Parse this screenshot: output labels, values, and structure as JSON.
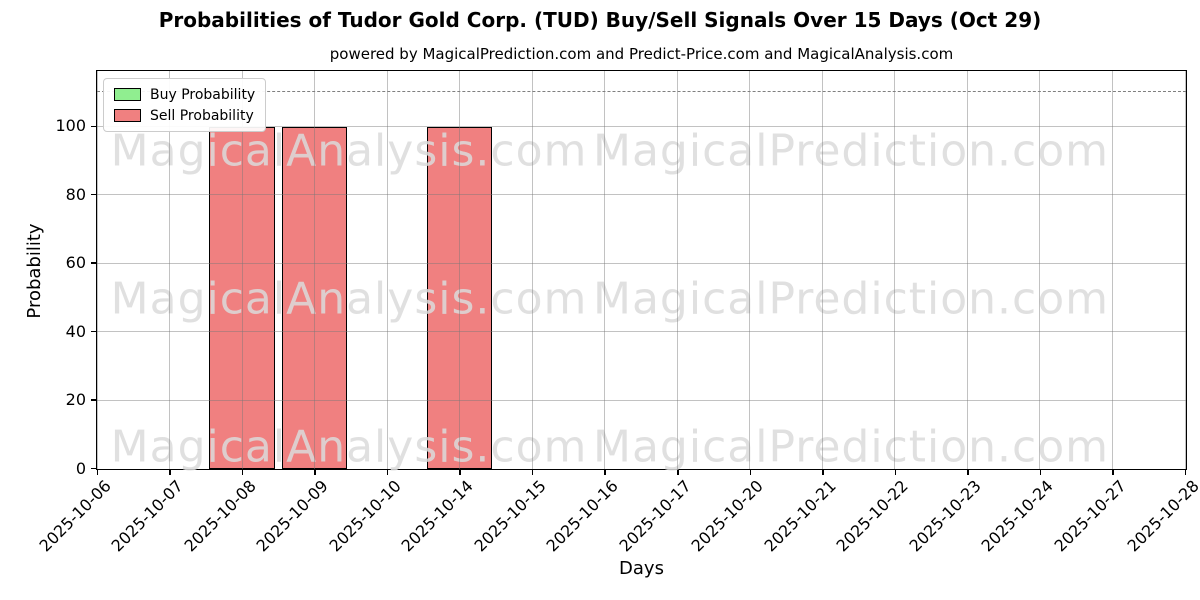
{
  "chart_data": {
    "type": "bar",
    "title": "Probabilities of Tudor Gold Corp. (TUD) Buy/Sell Signals Over 15 Days (Oct 29)",
    "subtitle": "powered by MagicalPrediction.com and Predict-Price.com and MagicalAnalysis.com",
    "xlabel": "Days",
    "ylabel": "Probability",
    "categories": [
      "2025-10-06",
      "2025-10-07",
      "2025-10-08",
      "2025-10-09",
      "2025-10-10",
      "2025-10-14",
      "2025-10-15",
      "2025-10-16",
      "2025-10-17",
      "2025-10-20",
      "2025-10-21",
      "2025-10-22",
      "2025-10-23",
      "2025-10-24",
      "2025-10-27",
      "2025-10-28"
    ],
    "series": [
      {
        "name": "Buy Probability",
        "color": "#90ee90",
        "values": [
          0,
          0,
          0,
          0,
          0,
          0,
          0,
          0,
          0,
          0,
          0,
          0,
          0,
          0,
          0,
          0
        ]
      },
      {
        "name": "Sell Probability",
        "color": "#f08080",
        "values": [
          0,
          0,
          100,
          100,
          0,
          100,
          0,
          0,
          0,
          0,
          0,
          0,
          0,
          0,
          0,
          0
        ]
      }
    ],
    "ylim": [
      0,
      116
    ],
    "yticks": [
      0,
      20,
      40,
      60,
      80,
      100
    ],
    "dashed_line_y": 110,
    "grid": true,
    "legend_position": "upper left",
    "bar_edge_color": "#000000",
    "grid_color": "#b0b0b0",
    "dashed_line_color": "#7f7f7f",
    "watermarks": [
      "MagicalAnalysis.com",
      "MagicalPrediction.com"
    ]
  }
}
